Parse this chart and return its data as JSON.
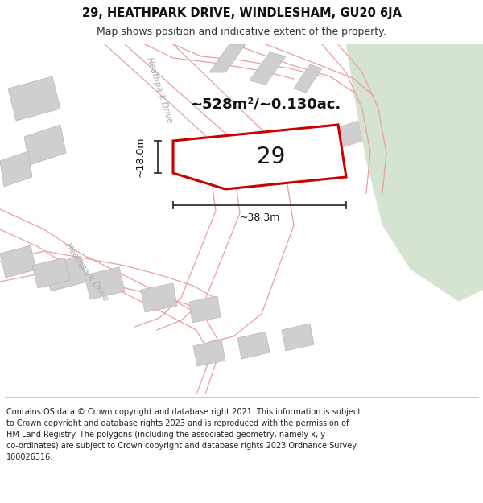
{
  "title": "29, HEATHPARK DRIVE, WINDLESHAM, GU20 6JA",
  "subtitle": "Map shows position and indicative extent of the property.",
  "footer": "Contains OS data © Crown copyright and database right 2021. This information is subject to Crown copyright and database rights 2023 and is reproduced with the permission of HM Land Registry. The polygons (including the associated geometry, namely x, y co-ordinates) are subject to Crown copyright and database rights 2023 Ordnance Survey 100026316.",
  "map_bg": "#f0eeeb",
  "green_area_color": "#d5e4d0",
  "road_color": "#ffffff",
  "building_color": "#d0cece",
  "property_fill": "#f0eeeb",
  "property_edge": "#cc0000",
  "road_line_color": "#e8a0a0",
  "dim_line_color": "#333333",
  "area_text": "~528m²/~0.130ac.",
  "property_label": "29",
  "dim_width": "~38.3m",
  "dim_height": "~18.0m",
  "road_label_upper": "Heathpark Drive",
  "road_label_lower": "Heathpark Drive",
  "title_fontsize": 10.5,
  "subtitle_fontsize": 9,
  "footer_fontsize": 7
}
